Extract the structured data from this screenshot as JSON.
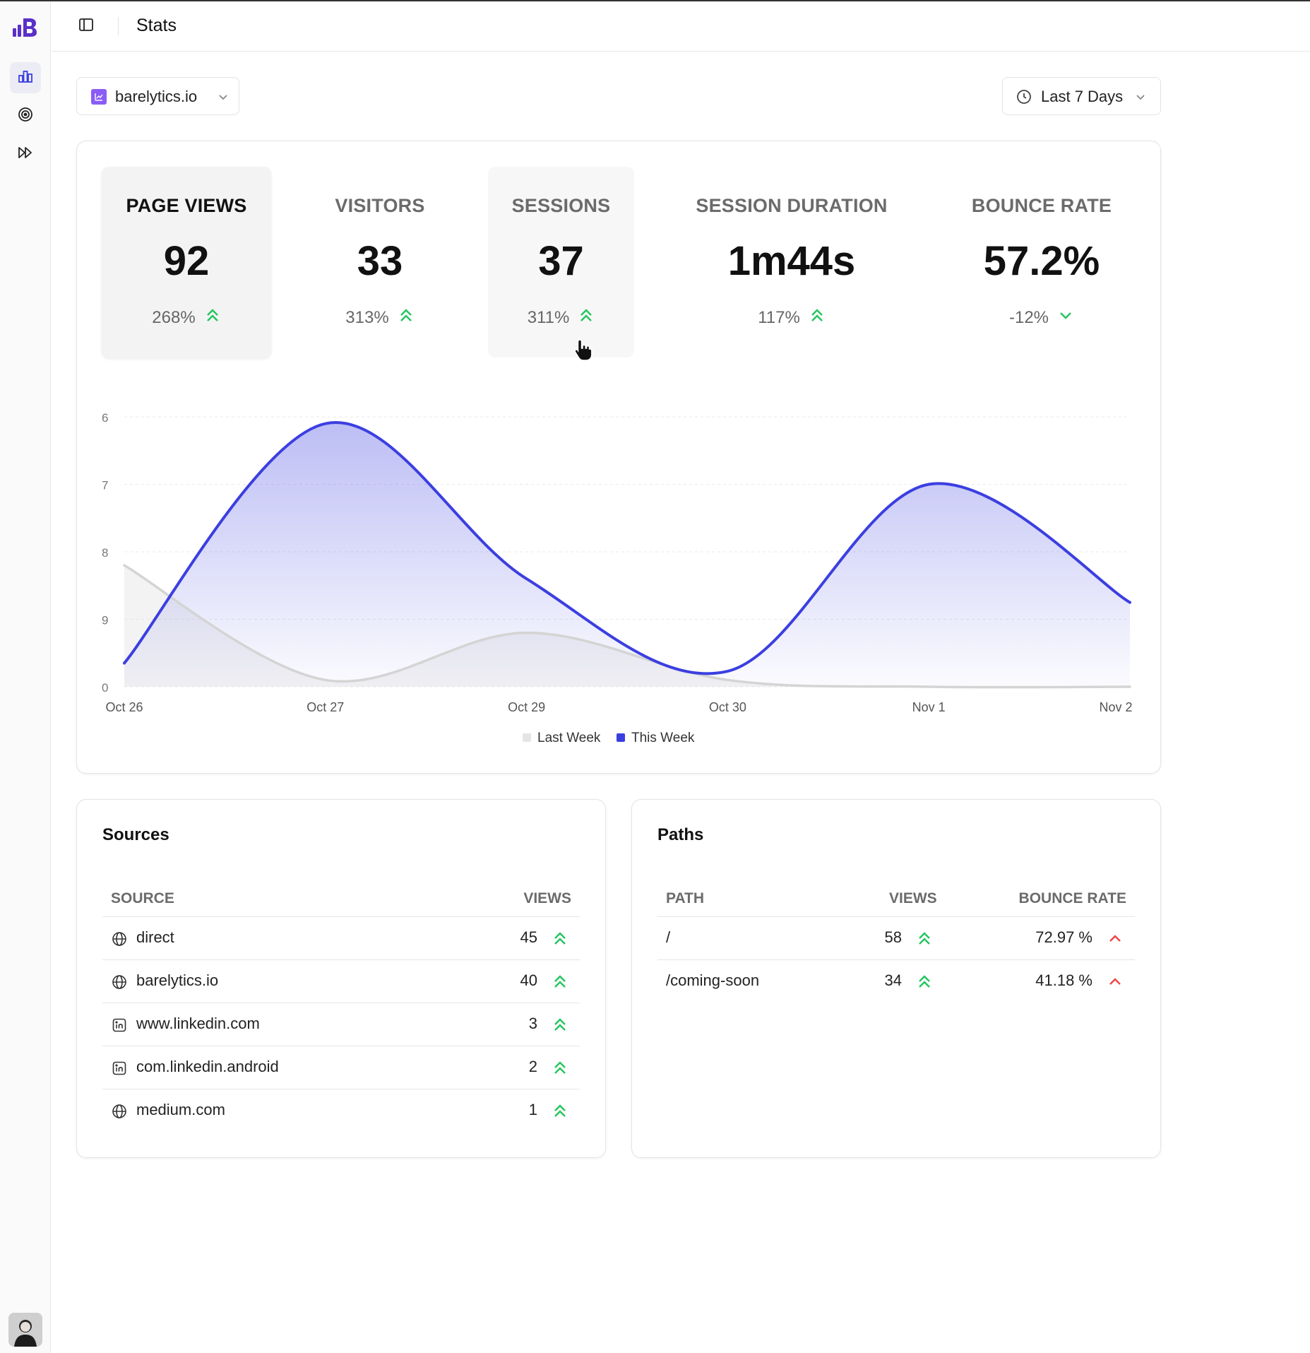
{
  "header": {
    "title": "Stats"
  },
  "site_selector": {
    "label": "barelytics.io"
  },
  "range_selector": {
    "label": "Last 7 Days"
  },
  "sidebar": {
    "items": [
      {
        "name": "stats",
        "icon": "bar-chart-icon",
        "active": true
      },
      {
        "name": "goals",
        "icon": "target-icon",
        "active": false
      },
      {
        "name": "forward",
        "icon": "fast-forward-icon",
        "active": false
      }
    ]
  },
  "metrics": [
    {
      "label": "PAGE VIEWS",
      "value": "92",
      "change": "268%",
      "trend": "up"
    },
    {
      "label": "VISITORS",
      "value": "33",
      "change": "313%",
      "trend": "up"
    },
    {
      "label": "SESSIONS",
      "value": "37",
      "change": "311%",
      "trend": "up"
    },
    {
      "label": "SESSION DURATION",
      "value": "1m44s",
      "change": "117%",
      "trend": "up"
    },
    {
      "label": "BOUNCE RATE",
      "value": "57.2%",
      "change": "-12%",
      "trend": "down"
    }
  ],
  "chart_data": {
    "type": "area",
    "y_tick_labels": [
      "6",
      "7",
      "8",
      "9",
      "0"
    ],
    "x_tick_labels": [
      "Oct 26",
      "Oct 27",
      "Oct 29",
      "Oct 30",
      "Nov 1",
      "Nov 2"
    ],
    "x": [
      0,
      1,
      2,
      3,
      4,
      5
    ],
    "ylim": [
      0,
      40
    ],
    "series": [
      {
        "name": "Last Week",
        "color": "#e5e5e5",
        "line_color": "#d4d4d4",
        "values": [
          18,
          1,
          8,
          1,
          0,
          0
        ]
      },
      {
        "name": "This Week",
        "color": "#3b3fe0",
        "values": [
          3.5,
          39,
          16,
          2.3,
          30,
          12.5
        ]
      }
    ],
    "legend": "bottom-center",
    "grid": true
  },
  "sources": {
    "title": "Sources",
    "columns": [
      "SOURCE",
      "VIEWS"
    ],
    "rows": [
      {
        "source": "direct",
        "views": "45",
        "icon": "globe-icon"
      },
      {
        "source": "barelytics.io",
        "views": "40",
        "icon": "globe-icon"
      },
      {
        "source": "www.linkedin.com",
        "views": "3",
        "icon": "linkedin-icon"
      },
      {
        "source": "com.linkedin.android",
        "views": "2",
        "icon": "linkedin-icon"
      },
      {
        "source": "medium.com",
        "views": "1",
        "icon": "globe-icon"
      }
    ]
  },
  "paths": {
    "title": "Paths",
    "columns": [
      "PATH",
      "VIEWS",
      "BOUNCE RATE"
    ],
    "rows": [
      {
        "path": "/",
        "views": "58",
        "bounce_rate": "72.97 %"
      },
      {
        "path": "/coming-soon",
        "views": "34",
        "bounce_rate": "41.18 %"
      }
    ]
  },
  "colors": {
    "accent": "#3b3fe0",
    "up": "#22c55e",
    "down_bad": "#ef4444",
    "brand": "#5b2fc9"
  }
}
